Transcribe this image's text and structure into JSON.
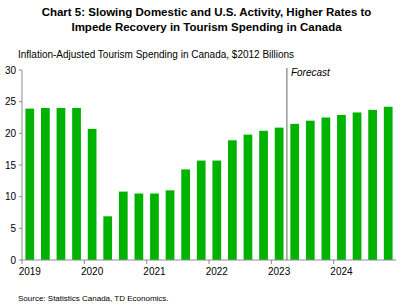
{
  "chart_data": {
    "type": "bar",
    "title": "Chart 5: Slowing Domestic and U.S. Activity, Higher Rates to Impede Recovery in Tourism Spending in Canada",
    "subtitle": "Inflation-Adjusted Tourism Spending in Canada, $2012 Billions",
    "source": "Source: Statistics Canada, TD Economics.",
    "categories": [
      "2019",
      null,
      null,
      null,
      "2020",
      null,
      null,
      null,
      "2021",
      null,
      null,
      null,
      "2022",
      null,
      null,
      null,
      "2023",
      null,
      null,
      null,
      "2024",
      null,
      null,
      null
    ],
    "values": [
      23.9,
      24.0,
      24.0,
      24.0,
      20.7,
      6.9,
      10.8,
      10.5,
      10.5,
      11.0,
      14.3,
      15.7,
      15.7,
      18.9,
      19.8,
      20.4,
      20.9,
      21.5,
      22.0,
      22.5,
      22.9,
      23.3,
      23.7,
      24.2
    ],
    "color": "#00b300",
    "ylim": [
      0,
      30
    ],
    "yticks": [
      0,
      5,
      10,
      15,
      20,
      25,
      30
    ],
    "grid": false,
    "annotations": [
      {
        "text": "Forecast",
        "x": 16.5
      }
    ]
  }
}
